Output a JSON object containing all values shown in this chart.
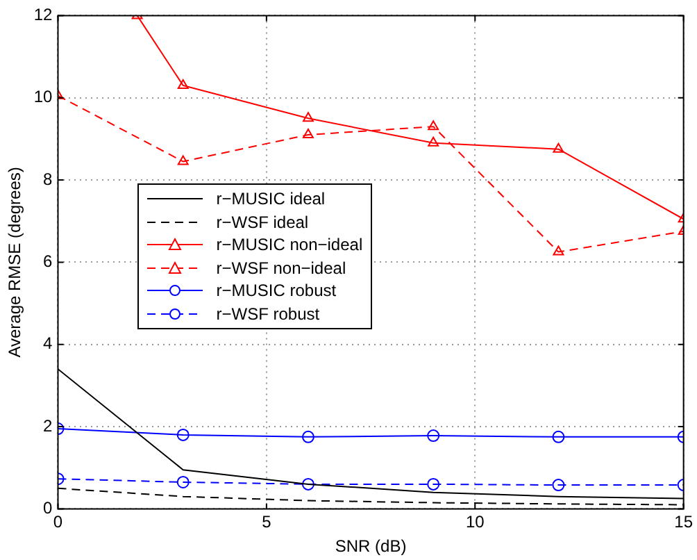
{
  "chart_data": {
    "type": "line",
    "xlabel": "SNR (dB)",
    "ylabel": "Average RMSE (degrees)",
    "x": [
      0,
      3,
      6,
      9,
      12,
      15
    ],
    "xlim": [
      0,
      15
    ],
    "xticks": [
      0,
      5,
      10,
      15
    ],
    "ylim": [
      0,
      12
    ],
    "yticks": [
      0,
      2,
      4,
      6,
      8,
      10,
      12
    ],
    "grid": true,
    "legend": "left",
    "series": [
      {
        "name": "r−MUSIC ideal",
        "color": "#000000",
        "line_style": "solid",
        "marker": "none",
        "values": [
          3.4,
          0.95,
          0.6,
          0.4,
          0.3,
          0.25
        ]
      },
      {
        "name": "r−WSF ideal",
        "color": "#000000",
        "line_style": "dashed",
        "marker": "none",
        "values": [
          0.5,
          0.3,
          0.2,
          0.15,
          0.12,
          0.1
        ]
      },
      {
        "name": "r−MUSIC non−ideal",
        "color": "#ff0000",
        "line_style": "solid",
        "marker": "triangle",
        "x": [
          1.9,
          3,
          6,
          9,
          12,
          15
        ],
        "values": [
          12,
          10.3,
          9.5,
          8.9,
          8.75,
          7.05
        ]
      },
      {
        "name": "r−WSF non−ideal",
        "color": "#ff0000",
        "line_style": "dashed",
        "marker": "triangle",
        "values": [
          10.05,
          8.45,
          9.1,
          9.3,
          6.25,
          6.75
        ]
      },
      {
        "name": "r−MUSIC robust",
        "color": "#0000ff",
        "line_style": "solid",
        "marker": "circle",
        "values": [
          1.95,
          1.8,
          1.75,
          1.78,
          1.75,
          1.75
        ]
      },
      {
        "name": "r−WSF robust",
        "color": "#0000ff",
        "line_style": "dashed",
        "marker": "circle",
        "values": [
          0.73,
          0.65,
          0.6,
          0.6,
          0.58,
          0.58
        ]
      }
    ]
  }
}
